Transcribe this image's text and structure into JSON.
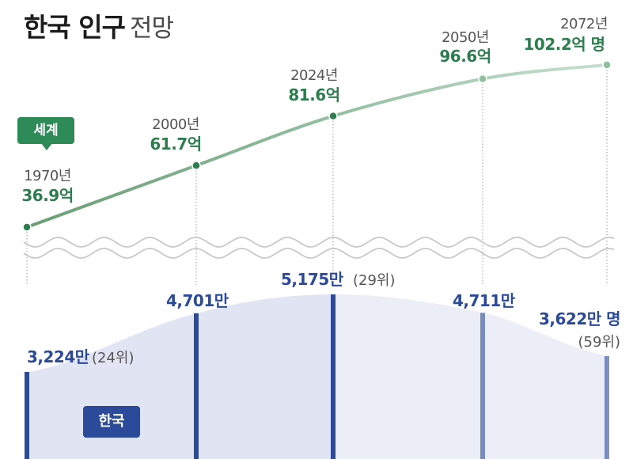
{
  "title": {
    "bold": "한국 인구",
    "light": "전망"
  },
  "badges": {
    "world": "세계",
    "korea": "한국"
  },
  "colors": {
    "world_line": "#6ea27a",
    "world_dark": "#2e7d4f",
    "korea_fill": "#d7dcef",
    "korea_bar": "#2b4a9a",
    "korea_text": "#2b4a9a"
  },
  "chart_data": [
    {
      "type": "line",
      "series": [
        {
          "name": "세계",
          "x": [
            1970,
            2000,
            2024,
            2050,
            2072
          ],
          "values": [
            36.9,
            61.7,
            81.6,
            96.6,
            102.2
          ]
        }
      ],
      "year_labels": [
        "1970년",
        "2000년",
        "2024년",
        "2050년",
        "2072년"
      ],
      "value_labels": [
        "36.9억",
        "61.7억",
        "81.6억",
        "96.6억",
        "102.2억 명"
      ]
    },
    {
      "type": "area",
      "series": [
        {
          "name": "한국",
          "x": [
            1970,
            2000,
            2024,
            2050,
            2072
          ],
          "values": [
            3224,
            4701,
            5175,
            4711,
            3622
          ]
        }
      ],
      "value_labels": [
        "3,224만",
        "4,701만",
        "5,175만",
        "4,711만",
        "3,622만 명"
      ],
      "rank_labels": [
        "(24위)",
        "",
        "(29위)",
        "",
        "(59위)"
      ]
    }
  ]
}
